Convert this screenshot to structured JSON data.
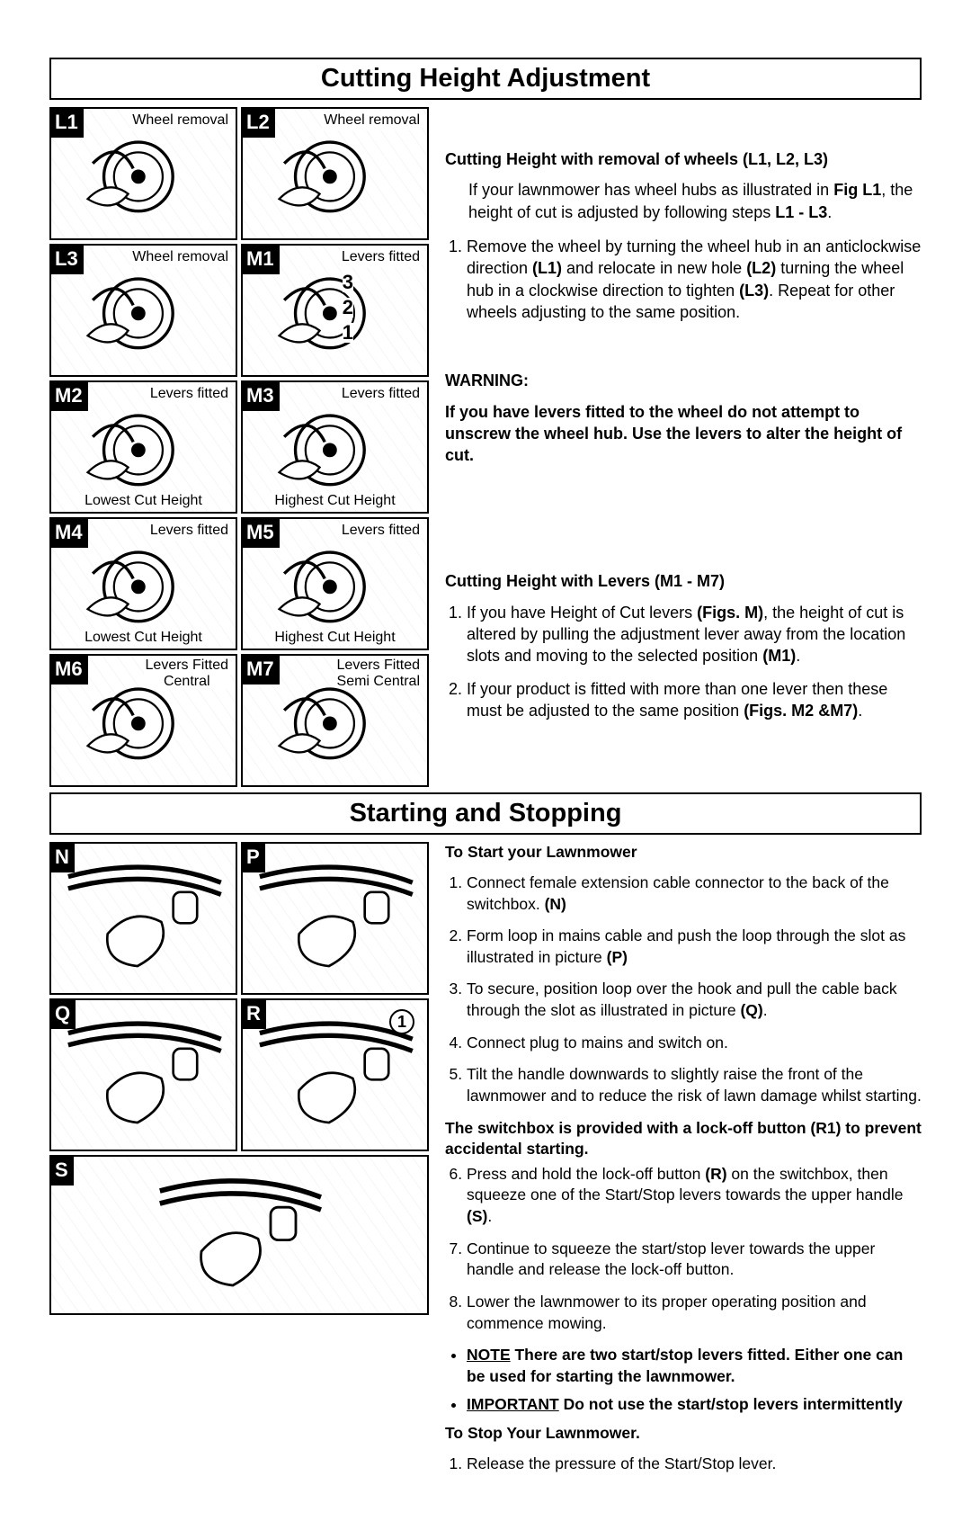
{
  "section1": {
    "title": "Cutting Height Adjustment",
    "diagrams": [
      {
        "tag": "L1",
        "captionTop": "Wheel removal"
      },
      {
        "tag": "L2",
        "captionTop": "Wheel removal"
      },
      {
        "tag": "L3",
        "captionTop": "Wheel removal"
      },
      {
        "tag": "M1",
        "captionTop": "Levers fitted",
        "numbers": [
          "3",
          "2",
          "1"
        ]
      },
      {
        "tag": "M2",
        "captionTop": "Levers fitted",
        "captionBottom": "Lowest Cut Height"
      },
      {
        "tag": "M3",
        "captionTop": "Levers fitted",
        "captionBottom": "Highest Cut Height"
      },
      {
        "tag": "M4",
        "captionTop": "Levers fitted",
        "captionBottom": "Lowest Cut Height"
      },
      {
        "tag": "M5",
        "captionTop": "Levers fitted",
        "captionBottom": "Highest Cut Height"
      },
      {
        "tag": "M6",
        "captionTop": "Levers Fitted\nCentral"
      },
      {
        "tag": "M7",
        "captionTop": "Levers Fitted\nSemi Central"
      }
    ],
    "h1": "Cutting Height with removal of wheels (L1, L2, L3)",
    "p1": "If your lawnmower has wheel hubs as illustrated in Fig L1, the height of cut is adjusted by following steps L1 - L3.",
    "li1": "Remove the wheel by turning the wheel hub in an anticlockwise direction (L1) and relocate in new hole (L2) turning the wheel hub in a clockwise direction to tighten (L3).  Repeat for other wheels adjusting to the same position.",
    "warnLabel": "WARNING:",
    "warnText": "If you have levers fitted to the wheel do not attempt to unscrew the wheel hub. Use the levers to alter the height of cut.",
    "h2": "Cutting Height with Levers (M1 - M7)",
    "li2a": "If you have Height of Cut levers (Figs. M), the height of cut is altered by pulling the adjustment lever away from the location slots and moving to the selected position (M1).",
    "li2b": "If your product is fitted with more than one lever then these must be adjusted to the same position (Figs. M2 &M7)."
  },
  "section2": {
    "title": "Starting and Stopping",
    "diagrams": [
      {
        "tag": "N"
      },
      {
        "tag": "P"
      },
      {
        "tag": "Q"
      },
      {
        "tag": "R",
        "callout": "1"
      },
      {
        "tag": "S",
        "wide": true
      }
    ],
    "hStart": "To Start your Lawnmower",
    "s1": "Connect female extension cable connector to the back of the switchbox. (N)",
    "s2": "Form loop in mains cable and push the loop through the slot as illustrated in picture (P)",
    "s3": "To secure, position loop over the hook and pull the cable back through the slot as illustrated in picture (Q).",
    "s4": "Connect plug to mains and switch on.",
    "s5": "Tilt the handle downwards to slightly raise the front of the lawnmower and to reduce the risk of lawn damage whilst starting.",
    "lockoff": "The switchbox is provided with a lock-off button (R1) to prevent accidental starting.",
    "s6": "Press and hold the lock-off button (R) on the switchbox, then squeeze one of the Start/Stop levers towards the upper handle (S).",
    "s7": "Continue to squeeze the start/stop lever towards the upper handle and release the lock-off button.",
    "s8": "Lower the lawnmower to its proper operating position and commence mowing.",
    "noteWord": "NOTE",
    "note": "  There are two start/stop levers fitted. Either one can be used for starting the lawnmower.",
    "impWord": "IMPORTANT",
    "imp": "  Do not use the start/stop levers intermittently",
    "hStop": "To Stop Your Lawnmower.",
    "stop1": "Release the pressure of the Start/Stop lever."
  },
  "svg": {
    "wheel": "<circle cx='60' cy='58' r='34' fill='#fff' stroke='#000' stroke-width='3'/><circle cx='60' cy='58' r='24' fill='#fff' stroke='#000' stroke-width='2'/><circle cx='60' cy='58' r='7'  fill='#000'/><path d='M15 45 Q40 20 55 50' fill='none' stroke='#000' stroke-width='3'/><path d='M10 80 Q30 60 50 75 Q35 95 10 80 Z' fill='#fff' stroke='#000' stroke-width='2'/>",
    "handle": "<path d='M2 20 Q70 2 130 25' fill='none' stroke='#000' stroke-width='4'/><path d='M2 30 Q70 12 130 35' fill='none' stroke='#000' stroke-width='4'/><path d='M35 68 Q55 45 80 58 Q88 80 60 95 Q32 92 35 68 Z' fill='#fff' stroke='#000' stroke-width='2'/><rect x='90' y='33' width='20' height='26' rx='6' fill='#fff' stroke='#000' stroke-width='2'/>"
  }
}
